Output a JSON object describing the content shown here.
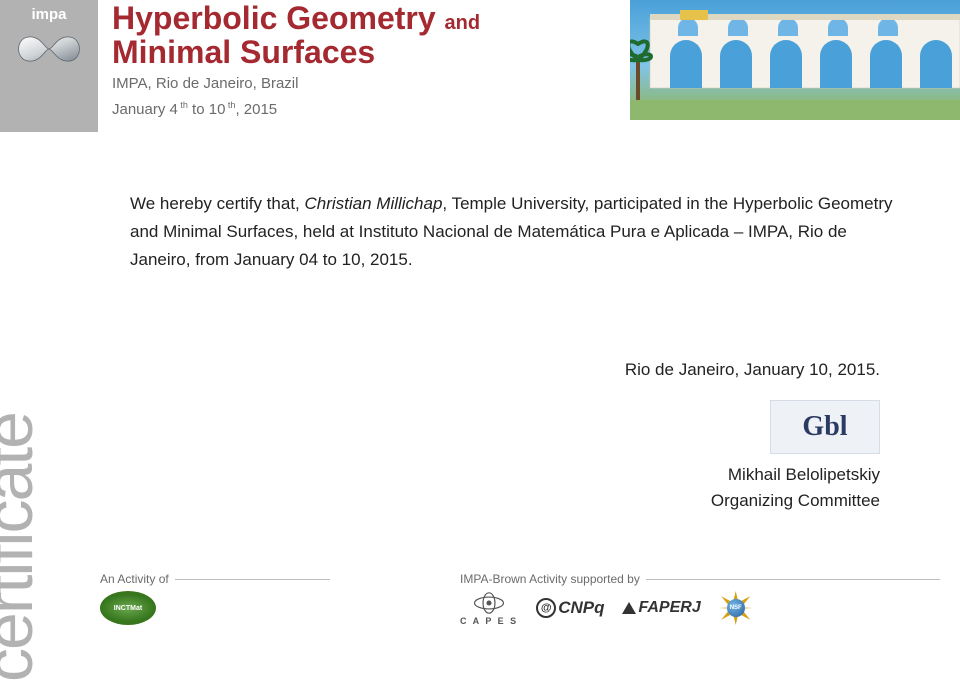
{
  "header": {
    "impa_label": "impa",
    "title_line1_main": "Hyperbolic Geometry",
    "title_line1_and": "and",
    "title_line2": "Minimal Surfaces",
    "venue": "IMPA, Rio de Janeiro, Brazil",
    "dates_html": "January 4<sup> th</sup> to 10<sup> th</sup>, 2015",
    "title_color": "#a42931",
    "subtitle_color": "#6b6b6b"
  },
  "strip": {
    "word": "certificate",
    "color": "#b2b2b2"
  },
  "body": {
    "prefix": "We hereby certify that, ",
    "name": "Christian Millichap",
    "sep": ", ",
    "affiliation": "Temple University",
    "rest": ", participated in the Hyperbolic Geometry and Minimal Surfaces, held at Instituto Nacional de Matemática Pura e Aplicada – IMPA, Rio de Janeiro, from January 04 to 10, 2015."
  },
  "closing": {
    "place_date": "Rio de Janeiro, January 10, 2015."
  },
  "signature": {
    "scribble": "Gbl",
    "name": "Mikhail Belolipetskiy",
    "role": "Organizing Committee"
  },
  "footer": {
    "left_label": "An Activity of",
    "right_label": "IMPA-Brown Activity supported by",
    "inctmat": "INCTMat",
    "capes": "C A P E S",
    "cnpq": "CNPq",
    "faperj": "FAPERJ",
    "nsf": "NSF"
  },
  "colors": {
    "background": "#ffffff",
    "text": "#222222",
    "strip_bg": "#b2b2b2",
    "rule": "#bdbdbd"
  }
}
